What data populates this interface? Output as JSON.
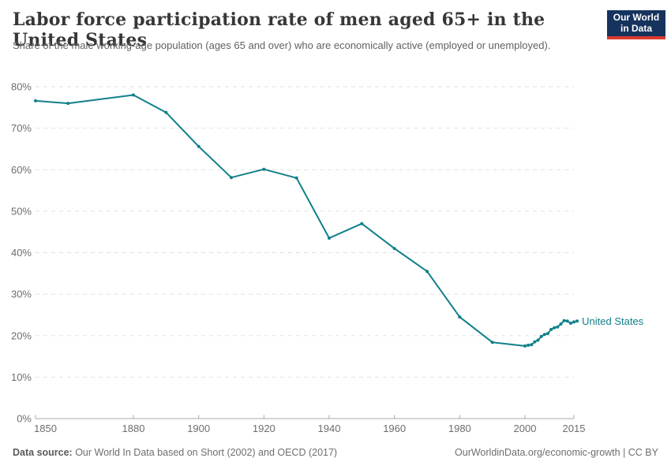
{
  "header": {
    "title": "Labor force participation rate of men aged 65+ in the United States",
    "subtitle": "Share of the male working-age population (ages 65 and over) who are economically active (employed or unemployed).",
    "logo": {
      "line1": "Our World",
      "line2": "in Data",
      "bg_color": "#16335e",
      "bar_color": "#dc3a2e"
    }
  },
  "chart_data": {
    "type": "line",
    "title": "Labor force participation rate of men aged 65+ in the United States",
    "xlabel": "",
    "ylabel": "",
    "xlim": [
      1850,
      2016
    ],
    "ylim": [
      0,
      80
    ],
    "x_ticks": [
      1850,
      1880,
      1900,
      1920,
      1940,
      1960,
      1980,
      2000,
      2015
    ],
    "y_ticks": [
      0,
      10,
      20,
      30,
      40,
      50,
      60,
      70,
      80
    ],
    "y_tick_suffix": "%",
    "grid": "dashed-horizontal",
    "legend": "end-of-line-label",
    "colors": {
      "grid": "#e2e2e2",
      "axis": "#a8a8a8",
      "tick_label": "#6e6e6e"
    },
    "series": [
      {
        "name": "United States",
        "color": "#10808a",
        "points": [
          [
            1850,
            76.6
          ],
          [
            1860,
            76.0
          ],
          [
            1880,
            78.0
          ],
          [
            1890,
            73.8
          ],
          [
            1900,
            65.6
          ],
          [
            1910,
            58.1
          ],
          [
            1920,
            60.1
          ],
          [
            1930,
            58.0
          ],
          [
            1940,
            43.5
          ],
          [
            1950,
            47.0
          ],
          [
            1960,
            41.0
          ],
          [
            1970,
            35.5
          ],
          [
            1980,
            24.5
          ],
          [
            1990,
            18.4
          ],
          [
            2000,
            17.5
          ],
          [
            2001,
            17.7
          ],
          [
            2002,
            17.8
          ],
          [
            2003,
            18.5
          ],
          [
            2004,
            18.9
          ],
          [
            2005,
            19.8
          ],
          [
            2006,
            20.3
          ],
          [
            2007,
            20.5
          ],
          [
            2008,
            21.5
          ],
          [
            2009,
            21.9
          ],
          [
            2010,
            22.1
          ],
          [
            2011,
            22.8
          ],
          [
            2012,
            23.6
          ],
          [
            2013,
            23.5
          ],
          [
            2014,
            23.0
          ],
          [
            2015,
            23.3
          ],
          [
            2016,
            23.5
          ]
        ]
      }
    ]
  },
  "footer": {
    "source_label": "Data source:",
    "source_text": " Our World In Data based on Short (2002) and OECD (2017)",
    "link_text": "OurWorldinData.org/economic-growth | CC BY"
  }
}
